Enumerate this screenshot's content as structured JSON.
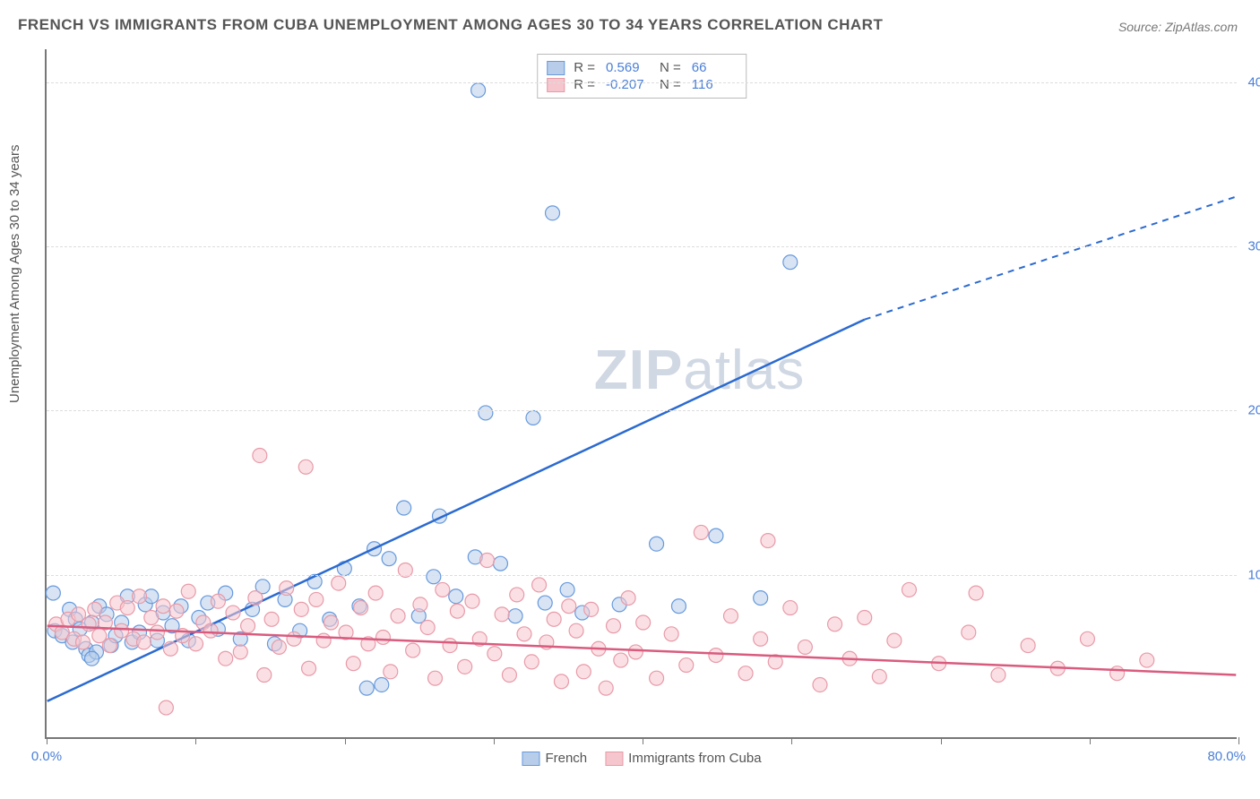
{
  "title": "FRENCH VS IMMIGRANTS FROM CUBA UNEMPLOYMENT AMONG AGES 30 TO 34 YEARS CORRELATION CHART",
  "source": "Source: ZipAtlas.com",
  "ylabel": "Unemployment Among Ages 30 to 34 years",
  "watermark_bold": "ZIP",
  "watermark_light": "atlas",
  "chart": {
    "type": "scatter-correlation",
    "xlim": [
      0,
      80
    ],
    "ylim": [
      0,
      42
    ],
    "xticks": [
      0,
      10,
      20,
      30,
      40,
      50,
      60,
      70,
      80
    ],
    "xtick_labels": {
      "0": "0.0%",
      "80": "80.0%"
    },
    "yticks": [
      10,
      20,
      30,
      40
    ],
    "ytick_labels": {
      "10": "10.0%",
      "20": "20.0%",
      "30": "30.0%",
      "40": "40.0%"
    },
    "grid_color": "#dddddd",
    "axis_color": "#777777",
    "background_color": "#ffffff",
    "text_color": "#555555",
    "value_color": "#4a7fd8",
    "series": [
      {
        "name": "French",
        "fill_color": "#b8cdea",
        "stroke_color": "#6699dd",
        "line_color": "#2b6ad0",
        "R": "0.569",
        "N": "66",
        "trend": {
          "x1": 0,
          "y1": 2.2,
          "x2": 55,
          "y2": 25.5,
          "x2_ext": 80,
          "y2_ext": 33.0
        },
        "points": [
          [
            0.4,
            8.8
          ],
          [
            0.5,
            6.5
          ],
          [
            1,
            6.2
          ],
          [
            1.5,
            7.8
          ],
          [
            1.7,
            5.8
          ],
          [
            1.9,
            7.2
          ],
          [
            2.2,
            6.6
          ],
          [
            2.6,
            5.4
          ],
          [
            2.8,
            5.0
          ],
          [
            3.0,
            7.0
          ],
          [
            3.3,
            5.2
          ],
          [
            3.5,
            8.0
          ],
          [
            4.0,
            7.5
          ],
          [
            4.3,
            5.6
          ],
          [
            4.6,
            6.2
          ],
          [
            5.0,
            7.0
          ],
          [
            5.4,
            8.6
          ],
          [
            5.7,
            5.8
          ],
          [
            6.2,
            6.4
          ],
          [
            6.6,
            8.1
          ],
          [
            7.0,
            8.6
          ],
          [
            7.4,
            5.9
          ],
          [
            7.8,
            7.6
          ],
          [
            8.4,
            6.8
          ],
          [
            9.0,
            8.0
          ],
          [
            9.5,
            5.9
          ],
          [
            10.2,
            7.3
          ],
          [
            10.8,
            8.2
          ],
          [
            11.5,
            6.6
          ],
          [
            12.0,
            8.8
          ],
          [
            13.0,
            6.0
          ],
          [
            13.8,
            7.8
          ],
          [
            14.5,
            9.2
          ],
          [
            15.3,
            5.7
          ],
          [
            16.0,
            8.4
          ],
          [
            17.0,
            6.5
          ],
          [
            18.0,
            9.5
          ],
          [
            19.0,
            7.2
          ],
          [
            20.0,
            10.3
          ],
          [
            21.0,
            8.0
          ],
          [
            21.5,
            3.0
          ],
          [
            22.0,
            11.5
          ],
          [
            22.5,
            3.2
          ],
          [
            23.0,
            10.9
          ],
          [
            24.0,
            14.0
          ],
          [
            25.0,
            7.4
          ],
          [
            26.0,
            9.8
          ],
          [
            26.4,
            13.5
          ],
          [
            27.5,
            8.6
          ],
          [
            28.8,
            11.0
          ],
          [
            29.5,
            19.8
          ],
          [
            30.5,
            10.6
          ],
          [
            31.5,
            7.4
          ],
          [
            32.7,
            19.5
          ],
          [
            33.5,
            8.2
          ],
          [
            35.0,
            9.0
          ],
          [
            36.0,
            7.6
          ],
          [
            38.5,
            8.1
          ],
          [
            29.0,
            39.5
          ],
          [
            34.0,
            32.0
          ],
          [
            41.0,
            11.8
          ],
          [
            42.5,
            8.0
          ],
          [
            45.0,
            12.3
          ],
          [
            48.0,
            8.5
          ],
          [
            50.0,
            29.0
          ],
          [
            3.0,
            4.8
          ]
        ]
      },
      {
        "name": "Immigrants from Cuba",
        "fill_color": "#f5c6cd",
        "stroke_color": "#e89aa8",
        "line_color": "#d95b7e",
        "R": "-0.207",
        "N": "116",
        "trend": {
          "x1": 0,
          "y1": 6.8,
          "x2": 80,
          "y2": 3.8,
          "x2_ext": 80,
          "y2_ext": 3.8
        },
        "points": [
          [
            0.6,
            6.9
          ],
          [
            1.0,
            6.4
          ],
          [
            1.4,
            7.2
          ],
          [
            1.8,
            6.0
          ],
          [
            2.1,
            7.5
          ],
          [
            2.4,
            5.8
          ],
          [
            2.8,
            6.9
          ],
          [
            3.2,
            7.8
          ],
          [
            3.5,
            6.2
          ],
          [
            3.9,
            7.0
          ],
          [
            4.2,
            5.6
          ],
          [
            4.7,
            8.2
          ],
          [
            5.0,
            6.5
          ],
          [
            5.4,
            7.9
          ],
          [
            5.8,
            6.0
          ],
          [
            6.2,
            8.6
          ],
          [
            6.5,
            5.8
          ],
          [
            7.0,
            7.3
          ],
          [
            7.4,
            6.4
          ],
          [
            7.8,
            8.0
          ],
          [
            8.3,
            5.4
          ],
          [
            8.7,
            7.7
          ],
          [
            9.1,
            6.2
          ],
          [
            9.5,
            8.9
          ],
          [
            10.0,
            5.7
          ],
          [
            10.5,
            7.0
          ],
          [
            11.0,
            6.5
          ],
          [
            11.5,
            8.3
          ],
          [
            12.0,
            4.8
          ],
          [
            12.5,
            7.6
          ],
          [
            13.0,
            5.2
          ],
          [
            13.5,
            6.8
          ],
          [
            14.0,
            8.5
          ],
          [
            14.3,
            17.2
          ],
          [
            14.6,
            3.8
          ],
          [
            15.1,
            7.2
          ],
          [
            15.6,
            5.5
          ],
          [
            16.1,
            9.1
          ],
          [
            16.6,
            6.0
          ],
          [
            17.1,
            7.8
          ],
          [
            17.4,
            16.5
          ],
          [
            17.6,
            4.2
          ],
          [
            18.1,
            8.4
          ],
          [
            18.6,
            5.9
          ],
          [
            19.1,
            7.0
          ],
          [
            19.6,
            9.4
          ],
          [
            20.1,
            6.4
          ],
          [
            20.6,
            4.5
          ],
          [
            21.1,
            7.9
          ],
          [
            21.6,
            5.7
          ],
          [
            22.1,
            8.8
          ],
          [
            22.6,
            6.1
          ],
          [
            23.1,
            4.0
          ],
          [
            23.6,
            7.4
          ],
          [
            24.1,
            10.2
          ],
          [
            24.6,
            5.3
          ],
          [
            25.1,
            8.1
          ],
          [
            25.6,
            6.7
          ],
          [
            26.1,
            3.6
          ],
          [
            26.6,
            9.0
          ],
          [
            27.1,
            5.6
          ],
          [
            27.6,
            7.7
          ],
          [
            28.1,
            4.3
          ],
          [
            28.6,
            8.3
          ],
          [
            29.1,
            6.0
          ],
          [
            29.6,
            10.8
          ],
          [
            30.1,
            5.1
          ],
          [
            30.6,
            7.5
          ],
          [
            31.1,
            3.8
          ],
          [
            31.6,
            8.7
          ],
          [
            32.1,
            6.3
          ],
          [
            32.6,
            4.6
          ],
          [
            33.1,
            9.3
          ],
          [
            33.6,
            5.8
          ],
          [
            34.1,
            7.2
          ],
          [
            34.6,
            3.4
          ],
          [
            35.1,
            8.0
          ],
          [
            35.6,
            6.5
          ],
          [
            36.1,
            4.0
          ],
          [
            36.6,
            7.8
          ],
          [
            37.1,
            5.4
          ],
          [
            37.6,
            3.0
          ],
          [
            38.1,
            6.8
          ],
          [
            38.6,
            4.7
          ],
          [
            39.1,
            8.5
          ],
          [
            39.6,
            5.2
          ],
          [
            40.1,
            7.0
          ],
          [
            41.0,
            3.6
          ],
          [
            42.0,
            6.3
          ],
          [
            43.0,
            4.4
          ],
          [
            44.0,
            12.5
          ],
          [
            45.0,
            5.0
          ],
          [
            46.0,
            7.4
          ],
          [
            47.0,
            3.9
          ],
          [
            48.0,
            6.0
          ],
          [
            48.5,
            12.0
          ],
          [
            49.0,
            4.6
          ],
          [
            50.0,
            7.9
          ],
          [
            51.0,
            5.5
          ],
          [
            52.0,
            3.2
          ],
          [
            53.0,
            6.9
          ],
          [
            54.0,
            4.8
          ],
          [
            55.0,
            7.3
          ],
          [
            56.0,
            3.7
          ],
          [
            57.0,
            5.9
          ],
          [
            58.0,
            9.0
          ],
          [
            60.0,
            4.5
          ],
          [
            62.0,
            6.4
          ],
          [
            62.5,
            8.8
          ],
          [
            64.0,
            3.8
          ],
          [
            66.0,
            5.6
          ],
          [
            68.0,
            4.2
          ],
          [
            70.0,
            6.0
          ],
          [
            72.0,
            3.9
          ],
          [
            74.0,
            4.7
          ],
          [
            8.0,
            1.8
          ]
        ]
      }
    ]
  },
  "legend_bottom": [
    {
      "swatch_fill": "#b8cdea",
      "swatch_stroke": "#6699dd",
      "label": "French"
    },
    {
      "swatch_fill": "#f5c6cd",
      "swatch_stroke": "#e89aa8",
      "label": "Immigrants from Cuba"
    }
  ]
}
